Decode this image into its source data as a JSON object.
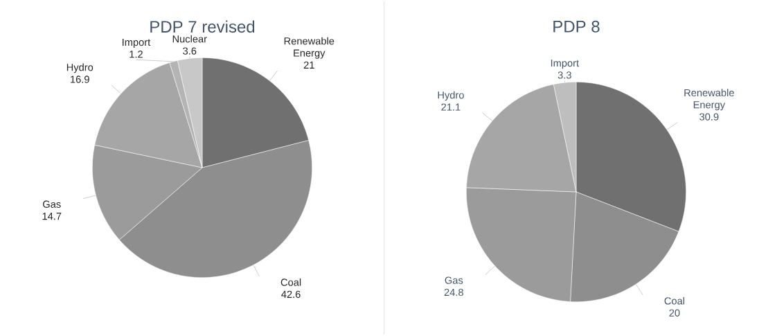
{
  "chart_data": [
    {
      "type": "pie",
      "title": "PDP 7 revised",
      "categories": [
        "Renewable Energy",
        "Coal",
        "Gas",
        "Hydro",
        "Import",
        "Nuclear"
      ],
      "values": [
        21,
        42.6,
        14.7,
        16.9,
        1.2,
        3.6
      ],
      "colors": [
        "#707070",
        "#8e8e8e",
        "#9b9b9b",
        "#a6a6a6",
        "#b4b4b4",
        "#c8c8c8"
      ],
      "data_labels": true
    },
    {
      "type": "pie",
      "title": "PDP 8",
      "categories": [
        "Renewable Energy",
        "Coal",
        "Gas",
        "Hydro",
        "Import"
      ],
      "values": [
        30.9,
        20,
        24.8,
        21.1,
        3.3
      ],
      "colors": [
        "#707070",
        "#8e8e8e",
        "#9b9b9b",
        "#a6a6a6",
        "#bebebe"
      ],
      "data_labels": true
    }
  ]
}
